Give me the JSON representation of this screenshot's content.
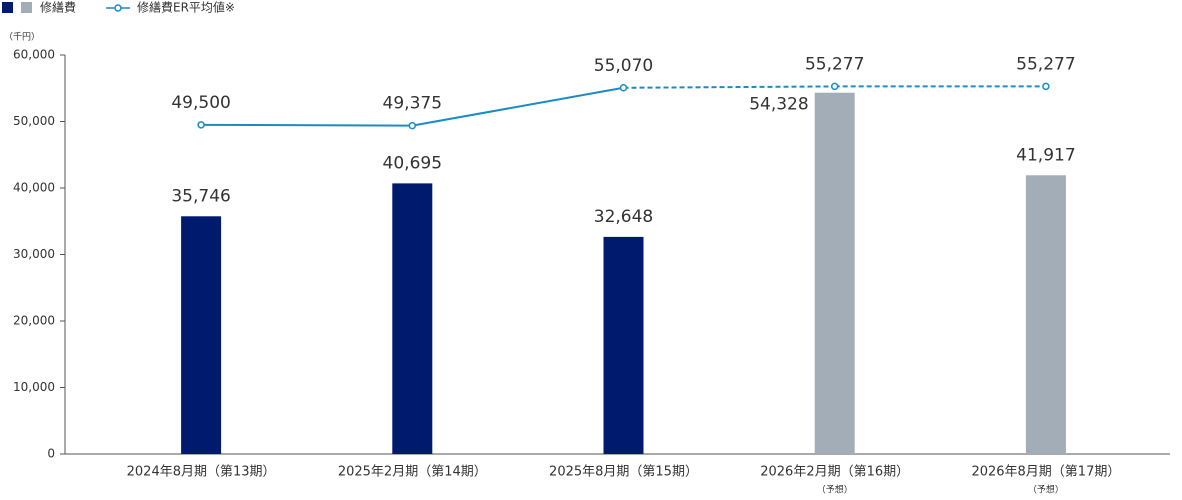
{
  "chart_data": {
    "type": "bar_line",
    "unit_label": "（千円）",
    "categories": [
      "2024年8月期（第13期）",
      "2025年2月期（第14期）",
      "2025年8月期（第15期）",
      "2026年2月期（第16期）",
      "2026年8月期（第17期）"
    ],
    "category_notes": [
      null,
      null,
      null,
      "（予想）",
      "（予想）"
    ],
    "bar_series": {
      "name": "修繕費",
      "legend_colors": [
        "#001a6e",
        "#a3adb8"
      ],
      "values": [
        35746,
        40695,
        32648,
        54328,
        41917
      ],
      "value_labels": [
        "35,746",
        "40,695",
        "32,648",
        "54,328",
        "41,917"
      ],
      "colors": [
        "#001a6e",
        "#001a6e",
        "#001a6e",
        "#a3adb8",
        "#a3adb8"
      ]
    },
    "line_series": {
      "name": "修繕費ER平均値※",
      "color": "#1a8cc4",
      "values": [
        49500,
        49375,
        55070,
        55277,
        55277
      ],
      "value_labels": [
        "49,500",
        "49,375",
        "55,070",
        "55,277",
        "55,277"
      ],
      "segment_styles": [
        "solid",
        "solid",
        "dashed",
        "dashed"
      ]
    },
    "ylim": [
      0,
      60000
    ],
    "yticks": [
      0,
      {
        "value": 10000,
        "label": "10,000"
      },
      {
        "value": 20000,
        "label": "20,000"
      },
      {
        "value": 30000,
        "label": "30,000"
      },
      {
        "value": 40000,
        "label": "40,000"
      },
      {
        "value": 50000,
        "label": "50,000"
      },
      {
        "value": 60000,
        "label": "60,000"
      }
    ],
    "grid": false
  }
}
